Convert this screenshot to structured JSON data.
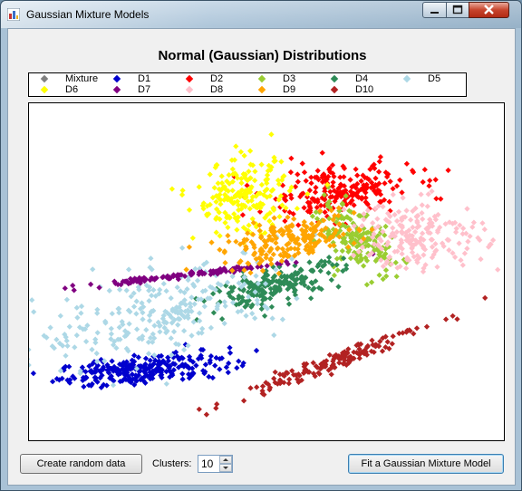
{
  "window": {
    "title": "Gaussian Mixture Models"
  },
  "legend": {
    "items": [
      {
        "label": "Mixture",
        "color": "#808080"
      },
      {
        "label": "D1",
        "color": "#0000cd"
      },
      {
        "label": "D2",
        "color": "#ff0000"
      },
      {
        "label": "D3",
        "color": "#9acd32"
      },
      {
        "label": "D4",
        "color": "#2e8b57"
      },
      {
        "label": "D5",
        "color": "#add8e6"
      },
      {
        "label": "D6",
        "color": "#ffff00"
      },
      {
        "label": "D7",
        "color": "#800080"
      },
      {
        "label": "D8",
        "color": "#ffc0cb"
      },
      {
        "label": "D9",
        "color": "#ffa500"
      },
      {
        "label": "D10",
        "color": "#b22222"
      }
    ]
  },
  "chart_data": {
    "type": "scatter",
    "title": "Normal (Gaussian) Distributions",
    "xlim": [
      0,
      100
    ],
    "ylim": [
      0,
      100
    ],
    "grid": false,
    "legend_position": "top",
    "series": [
      {
        "name": "D1",
        "color": "#0000cd",
        "cx": 24,
        "cy": 21,
        "sx": 9,
        "sy": 2.4,
        "rho": 0.5,
        "n": 260
      },
      {
        "name": "D2",
        "color": "#ff0000",
        "cx": 65,
        "cy": 74,
        "sx": 8,
        "sy": 4,
        "rho": 0.2,
        "n": 220
      },
      {
        "name": "D3",
        "color": "#9acd32",
        "cx": 69,
        "cy": 59,
        "sx": 4,
        "sy": 5,
        "rho": -0.5,
        "n": 180
      },
      {
        "name": "D4",
        "color": "#2e8b57",
        "cx": 52,
        "cy": 46,
        "sx": 7,
        "sy": 3.5,
        "rho": 0.7,
        "n": 200
      },
      {
        "name": "D5",
        "color": "#add8e6",
        "cx": 28,
        "cy": 38,
        "sx": 13,
        "sy": 8,
        "rho": 0.6,
        "n": 260
      },
      {
        "name": "D6",
        "color": "#ffff00",
        "cx": 45,
        "cy": 72,
        "sx": 5,
        "sy": 5.5,
        "rho": 0.1,
        "n": 200
      },
      {
        "name": "D7",
        "color": "#800080",
        "cx": 33,
        "cy": 49,
        "sx": 11,
        "sy": 1.8,
        "rho": 0.97,
        "n": 120
      },
      {
        "name": "D8",
        "color": "#ffc0cb",
        "cx": 82,
        "cy": 61,
        "sx": 7,
        "sy": 5,
        "rho": 0,
        "n": 200
      },
      {
        "name": "D9",
        "color": "#ffa500",
        "cx": 55,
        "cy": 59,
        "sx": 7,
        "sy": 3.5,
        "rho": 0.5,
        "n": 200
      },
      {
        "name": "D10",
        "color": "#b22222",
        "cx": 63,
        "cy": 23,
        "sx": 10,
        "sy": 5.5,
        "rho": 0.97,
        "n": 160
      }
    ]
  },
  "controls": {
    "create_button": "Create random data",
    "clusters_label": "Clusters:",
    "clusters_value": "10",
    "fit_button": "Fit a Gaussian Mixture Model"
  }
}
